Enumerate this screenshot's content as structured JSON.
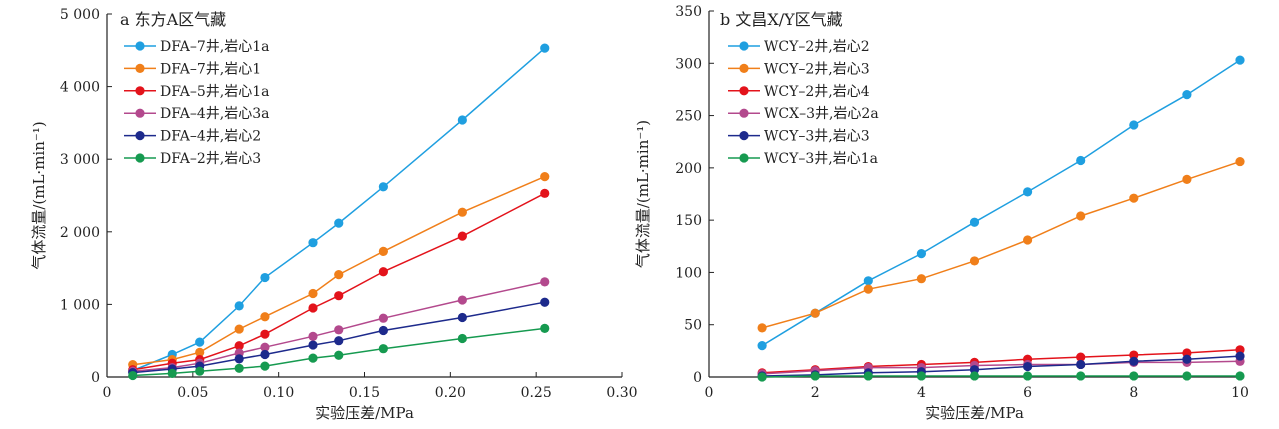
{
  "chart_data": [
    {
      "type": "line",
      "title": "a 东方A区气藏",
      "xlabel": "实验压差/MPa",
      "ylabel": "气体流量/(mL·min⁻¹)",
      "xlim": [
        0,
        0.3
      ],
      "ylim": [
        0,
        5000
      ],
      "xticks": [
        0,
        0.05,
        0.1,
        0.15,
        0.2,
        0.25,
        0.3
      ],
      "xtick_labels": [
        "0",
        "0.05",
        "0.10",
        "0.15",
        "0.20",
        "0.25",
        "0.30"
      ],
      "yticks": [
        0,
        1000,
        2000,
        3000,
        4000,
        5000
      ],
      "ytick_labels": [
        "0",
        "1 000",
        "2 000",
        "3 000",
        "4 000",
        "5 000"
      ],
      "legend_position": "top-left",
      "x": [
        0.015,
        0.038,
        0.054,
        0.077,
        0.092,
        0.12,
        0.135,
        0.161,
        0.207,
        0.255
      ],
      "series": [
        {
          "name": "DFA–7井,岩心1a",
          "color": "#1f9fe0",
          "values": [
            90,
            310,
            480,
            980,
            1370,
            1850,
            2120,
            2620,
            3540,
            4530
          ]
        },
        {
          "name": "DFA–7井,岩心1",
          "color": "#f07f1a",
          "values": [
            170,
            240,
            340,
            660,
            830,
            1150,
            1410,
            1730,
            2270,
            2760
          ]
        },
        {
          "name": "DFA–5井,岩心1a",
          "color": "#e3131b",
          "values": [
            100,
            190,
            240,
            430,
            590,
            950,
            1120,
            1450,
            1940,
            2530
          ]
        },
        {
          "name": "DFA–4井,岩心3a",
          "color": "#b3498d",
          "values": [
            80,
            130,
            190,
            330,
            410,
            560,
            650,
            810,
            1060,
            1310
          ]
        },
        {
          "name": "DFA–4井,岩心2",
          "color": "#1d2a8c",
          "values": [
            60,
            110,
            150,
            250,
            310,
            440,
            500,
            640,
            820,
            1030
          ]
        },
        {
          "name": "DFA–2井,岩心3",
          "color": "#169a50",
          "values": [
            20,
            50,
            80,
            120,
            150,
            260,
            300,
            390,
            530,
            670
          ]
        }
      ]
    },
    {
      "type": "line",
      "title": "b 文昌X/Y区气藏",
      "xlabel": "实验压差/MPa",
      "ylabel": "气体流量/(mL·min⁻¹)",
      "xlim": [
        0,
        10
      ],
      "ylim": [
        0,
        350
      ],
      "xticks": [
        0,
        2,
        4,
        6,
        8,
        10
      ],
      "xtick_labels": [
        "0",
        "2",
        "4",
        "6",
        "8",
        "10"
      ],
      "yticks": [
        0,
        50,
        100,
        150,
        200,
        250,
        300,
        350
      ],
      "ytick_labels": [
        "0",
        "50",
        "100",
        "150",
        "200",
        "250",
        "300",
        "350"
      ],
      "legend_position": "top-left",
      "x": [
        1,
        2,
        3,
        4,
        5,
        6,
        7,
        8,
        9,
        10
      ],
      "series": [
        {
          "name": "WCY–2井,岩心2",
          "color": "#1f9fe0",
          "values": [
            30,
            61,
            92,
            118,
            148,
            177,
            207,
            241,
            270,
            303
          ]
        },
        {
          "name": "WCY–2井,岩心3",
          "color": "#f07f1a",
          "values": [
            47,
            61,
            84,
            94,
            111,
            131,
            154,
            171,
            189,
            206
          ]
        },
        {
          "name": "WCY–2井,岩心4",
          "color": "#e3131b",
          "values": [
            4,
            7,
            10,
            12,
            14,
            17,
            19,
            21,
            23,
            26
          ]
        },
        {
          "name": "WCX–3井,岩心2a",
          "color": "#b3498d",
          "values": [
            3,
            6,
            9,
            9,
            11,
            12,
            12,
            14,
            14,
            15
          ]
        },
        {
          "name": "WCY–3井,岩心3",
          "color": "#1d2a8c",
          "values": [
            1,
            2,
            4,
            5,
            7,
            10,
            12,
            15,
            17,
            20
          ]
        },
        {
          "name": "WCY–3井,岩心1a",
          "color": "#169a50",
          "values": [
            0,
            1,
            1,
            1,
            1,
            1,
            1,
            1,
            1,
            1
          ]
        }
      ]
    }
  ]
}
